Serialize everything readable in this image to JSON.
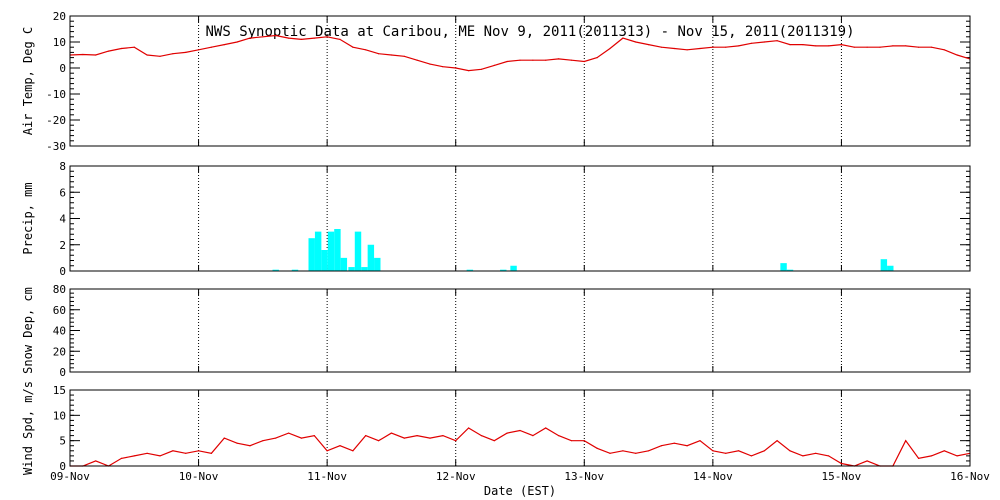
{
  "title": "NWS Synoptic Data at Caribou, ME   Nov  9, 2011(2011313) - Nov 15, 2011(2011319)",
  "x_axis": {
    "label": "Date (EST)",
    "ticks": [
      "09-Nov",
      "10-Nov",
      "11-Nov",
      "12-Nov",
      "13-Nov",
      "14-Nov",
      "15-Nov",
      "16-Nov"
    ]
  },
  "colors": {
    "temp": "#e00000",
    "precip": "#00ffff",
    "wind": "#e00000",
    "axis": "#000000",
    "grid": "#000000"
  },
  "chart_data": [
    {
      "type": "line",
      "ylabel": "Air Temp, Deg C",
      "ylim": [
        -30,
        20
      ],
      "yticks": [
        -30,
        -20,
        -10,
        0,
        10,
        20
      ],
      "xlim": [
        0,
        7
      ],
      "grid": "dotted vertical at midnight",
      "series": [
        {
          "x": [
            0,
            0.1,
            0.2,
            0.3,
            0.4,
            0.5,
            0.6,
            0.7,
            0.8,
            0.9,
            1.0,
            1.1,
            1.2,
            1.3,
            1.4,
            1.5,
            1.6,
            1.7,
            1.8,
            1.9,
            2.0,
            2.1,
            2.2,
            2.3,
            2.4,
            2.5,
            2.6,
            2.7,
            2.8,
            2.9,
            3.0,
            3.1,
            3.2,
            3.3,
            3.4,
            3.5,
            3.6,
            3.7,
            3.8,
            3.9,
            4.0,
            4.1,
            4.2,
            4.3,
            4.4,
            4.5,
            4.6,
            4.7,
            4.8,
            4.9,
            5.0,
            5.1,
            5.2,
            5.3,
            5.4,
            5.5,
            5.6,
            5.7,
            5.8,
            5.9,
            6.0,
            6.1,
            6.2,
            6.3,
            6.4,
            6.5,
            6.6,
            6.7,
            6.8,
            6.9,
            7.0
          ],
          "y": [
            5,
            5.2,
            5,
            6.5,
            7.5,
            8,
            5,
            4.5,
            5.5,
            6,
            7,
            8,
            9,
            10,
            11.5,
            12,
            12.5,
            11.5,
            11,
            11.5,
            12,
            11,
            8,
            7,
            5.5,
            5,
            4.5,
            3,
            1.5,
            0.5,
            0,
            -1,
            -0.5,
            1,
            2.5,
            3,
            3,
            3,
            3.5,
            3,
            2.5,
            4,
            7.5,
            11.5,
            10,
            9,
            8,
            7.5,
            7,
            7.5,
            8,
            8,
            8.5,
            9.5,
            10,
            10.5,
            9,
            9,
            8.5,
            8.5,
            9,
            8,
            8,
            8,
            8.5,
            8.5,
            8,
            8,
            7,
            5,
            3.5
          ]
        }
      ]
    },
    {
      "type": "bar",
      "ylabel": "Precip, mm",
      "ylim": [
        0,
        8
      ],
      "yticks": [
        0,
        2,
        4,
        6,
        8
      ],
      "xlim": [
        0,
        7
      ],
      "series": [
        {
          "x": [
            1.6,
            1.75,
            1.88,
            1.93,
            1.98,
            2.03,
            2.08,
            2.13,
            2.19,
            2.24,
            2.29,
            2.34,
            2.39,
            3.11,
            3.37,
            3.45,
            5.55,
            5.6,
            6.33,
            6.38
          ],
          "y": [
            0.1,
            0.1,
            2.5,
            3.0,
            1.6,
            3.0,
            3.2,
            1.0,
            0.3,
            3.0,
            0.3,
            2.0,
            1.0,
            0.1,
            0.1,
            0.4,
            0.6,
            0.1,
            0.9,
            0.4
          ]
        }
      ]
    },
    {
      "type": "line",
      "ylabel": "Snow Dep, cm",
      "ylim": [
        0,
        80
      ],
      "yticks": [
        0,
        20,
        40,
        60,
        80
      ],
      "xlim": [
        0,
        7
      ],
      "series": []
    },
    {
      "type": "line",
      "ylabel": "Wind Spd, m/s",
      "ylim": [
        0,
        15
      ],
      "yticks": [
        0,
        5,
        10,
        15
      ],
      "xlim": [
        0,
        7
      ],
      "series": [
        {
          "x": [
            0,
            0.1,
            0.2,
            0.3,
            0.4,
            0.5,
            0.6,
            0.7,
            0.8,
            0.9,
            1.0,
            1.1,
            1.2,
            1.3,
            1.4,
            1.5,
            1.6,
            1.7,
            1.8,
            1.9,
            2.0,
            2.1,
            2.2,
            2.3,
            2.4,
            2.5,
            2.6,
            2.7,
            2.8,
            2.9,
            3.0,
            3.1,
            3.2,
            3.3,
            3.4,
            3.5,
            3.6,
            3.7,
            3.8,
            3.9,
            4.0,
            4.1,
            4.2,
            4.3,
            4.4,
            4.5,
            4.6,
            4.7,
            4.8,
            4.9,
            5.0,
            5.1,
            5.2,
            5.3,
            5.4,
            5.5,
            5.6,
            5.7,
            5.8,
            5.9,
            6.0,
            6.1,
            6.2,
            6.3,
            6.4,
            6.5,
            6.6,
            6.7,
            6.8,
            6.9,
            7.0
          ],
          "y": [
            0,
            0,
            1,
            0,
            1.5,
            2,
            2.5,
            2,
            3,
            2.5,
            3,
            2.5,
            5.5,
            4.5,
            4,
            5,
            5.5,
            6.5,
            5.5,
            6,
            3,
            4,
            3,
            6,
            5,
            6.5,
            5.5,
            6,
            5.5,
            6,
            5,
            7.5,
            6,
            5,
            6.5,
            7,
            6,
            7.5,
            6,
            5,
            5,
            3.5,
            2.5,
            3,
            2.5,
            3,
            4,
            4.5,
            4,
            5,
            3,
            2.5,
            3,
            2,
            3,
            5,
            3,
            2,
            2.5,
            2,
            0.5,
            0,
            1,
            0,
            0,
            5,
            1.5,
            2,
            3,
            2,
            2.5
          ]
        }
      ]
    }
  ]
}
